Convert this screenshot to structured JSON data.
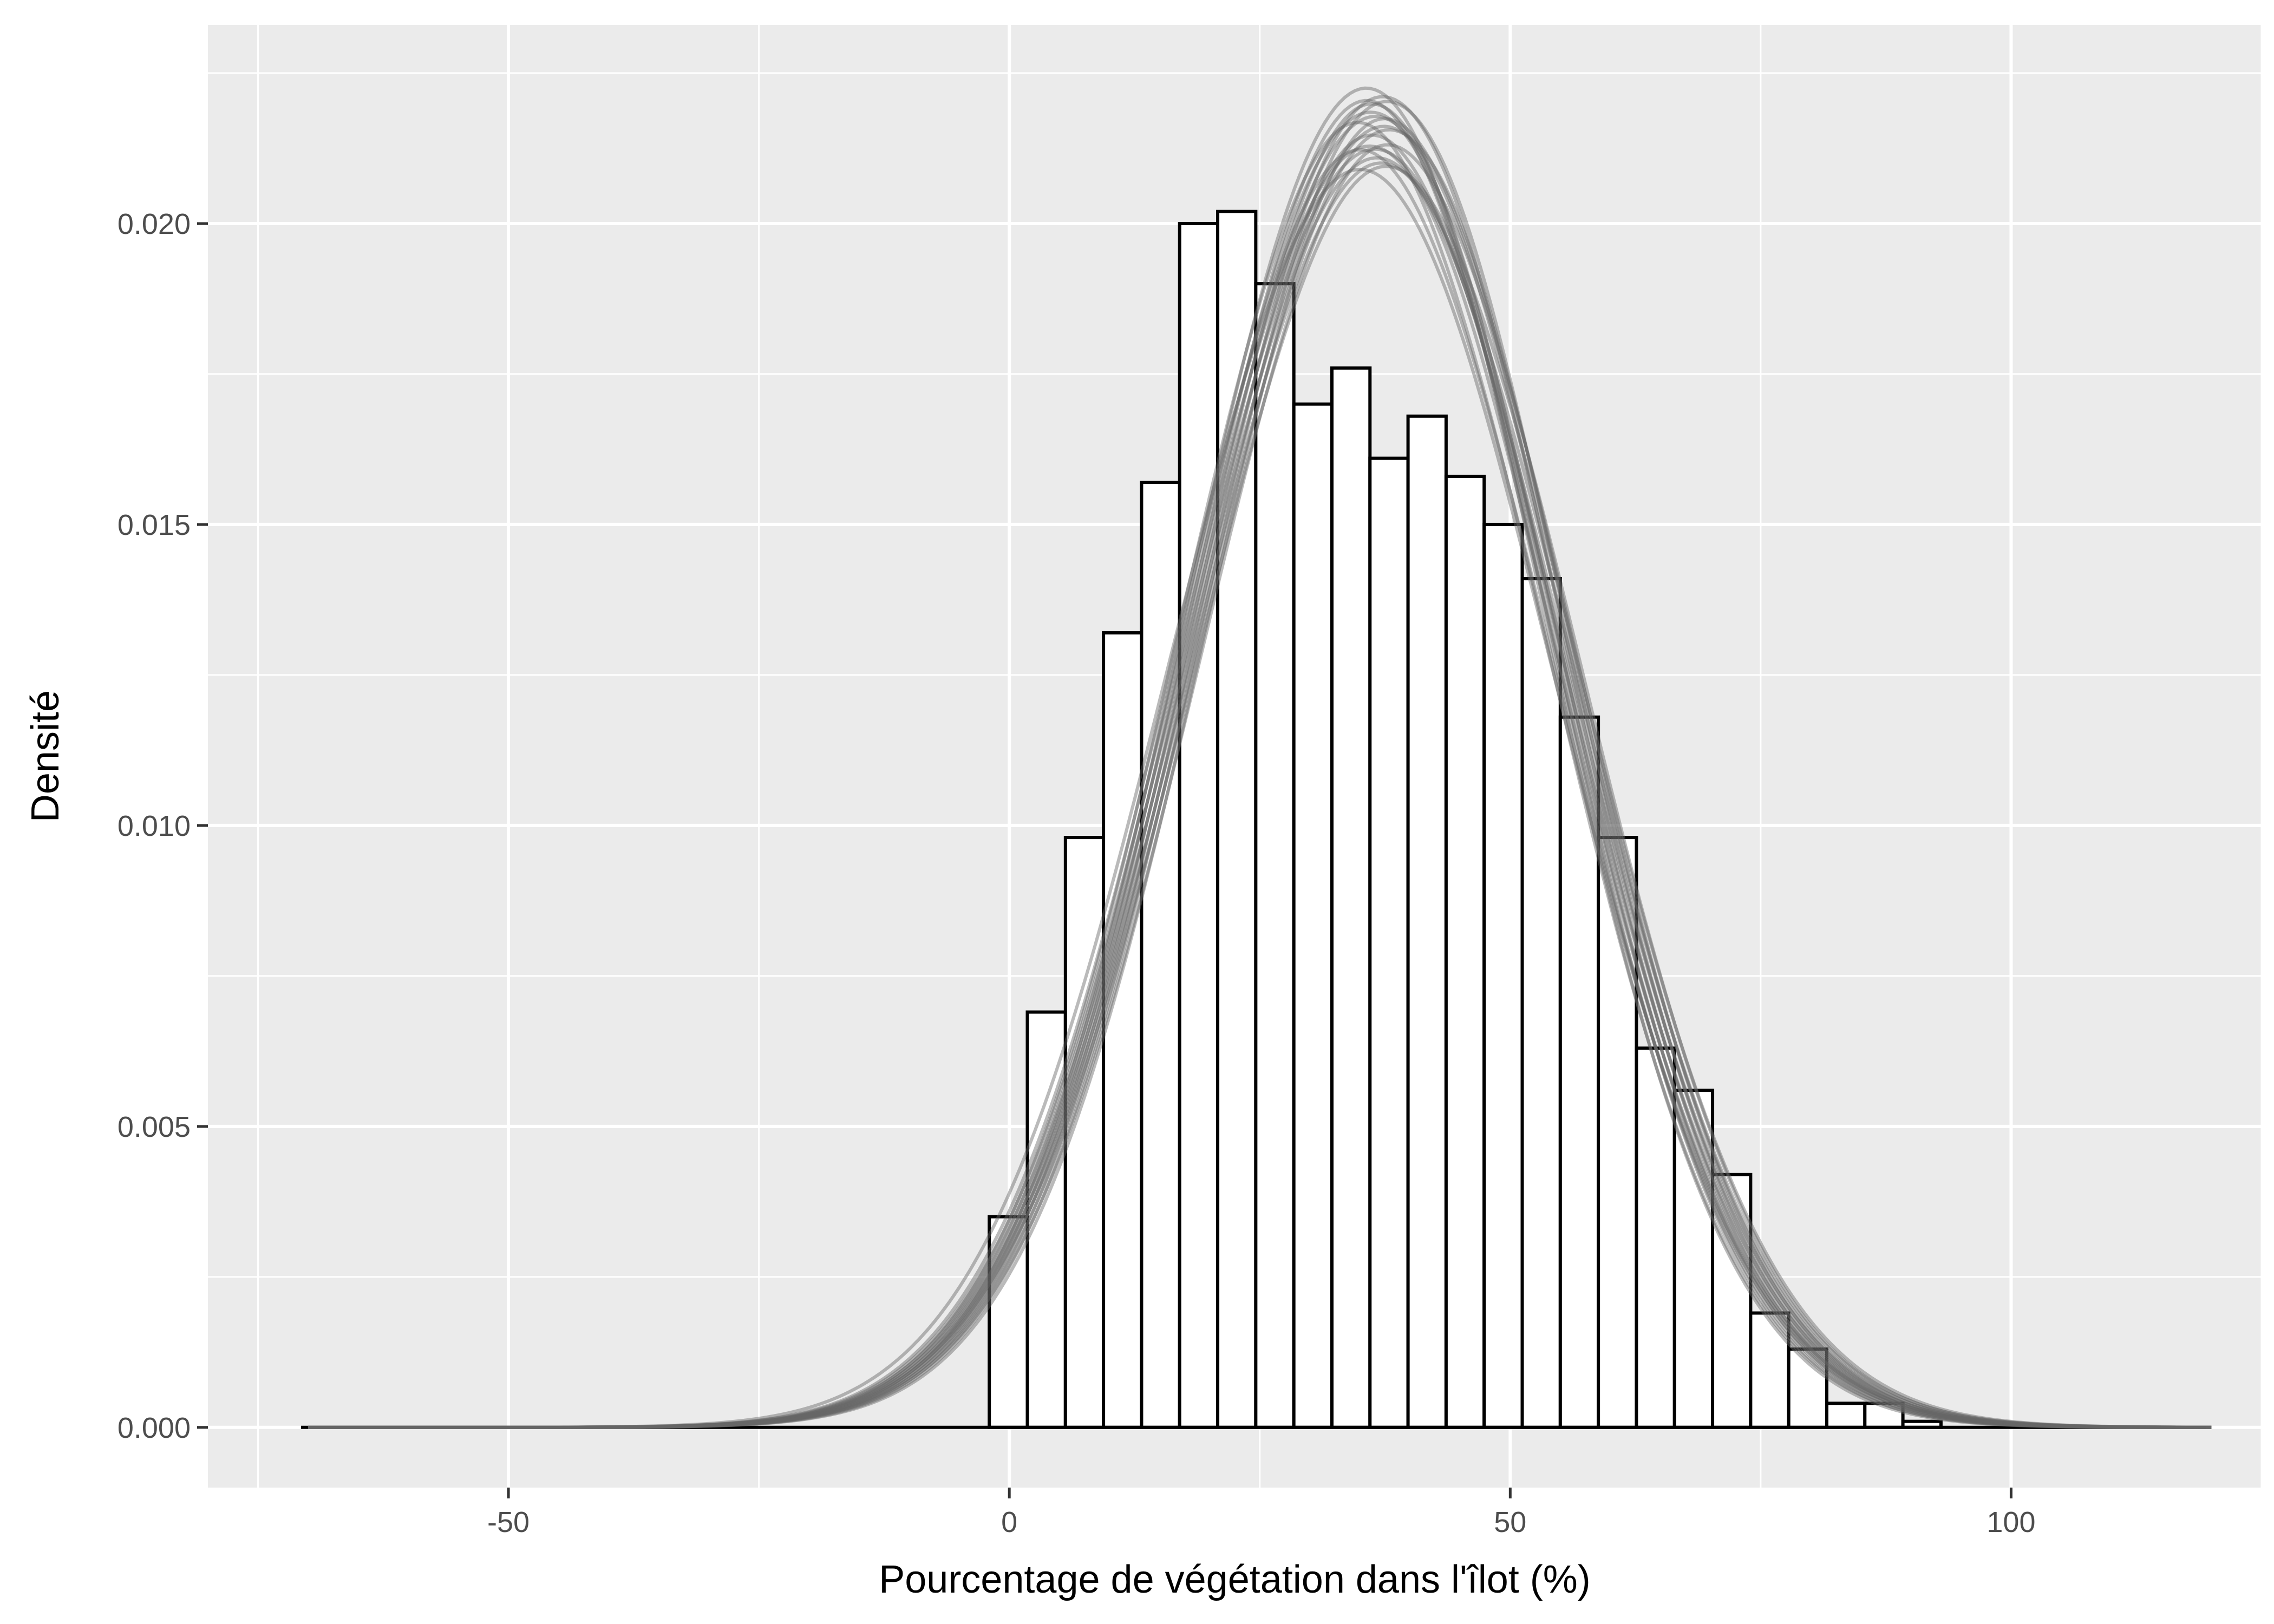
{
  "chart_data": {
    "type": "bar",
    "subtype": "histogram with overlaid density curves",
    "xlabel": "Pourcentage de végétation dans l'îlot (%)",
    "ylabel": "Densité",
    "xlim": [
      -80,
      125
    ],
    "ylim": [
      -0.001,
      0.0233
    ],
    "x_ticks": [
      -50,
      0,
      50,
      100
    ],
    "x_tick_labels": [
      "-50",
      "0",
      "50",
      "100"
    ],
    "y_ticks": [
      0.0,
      0.005,
      0.01,
      0.015,
      0.02
    ],
    "y_tick_labels": [
      "0.000",
      "0.005",
      "0.010",
      "0.015",
      "0.020"
    ],
    "grid": true,
    "bin_width": 3.8,
    "baseline_range": [
      -70.7,
      119.5
    ],
    "bins": [
      {
        "x0": -2.0,
        "x1": 1.8,
        "value": 0.0035
      },
      {
        "x0": 1.8,
        "x1": 5.6,
        "value": 0.0069
      },
      {
        "x0": 5.6,
        "x1": 9.4,
        "value": 0.0098
      },
      {
        "x0": 9.4,
        "x1": 13.2,
        "value": 0.0132
      },
      {
        "x0": 13.2,
        "x1": 17.0,
        "value": 0.0157
      },
      {
        "x0": 17.0,
        "x1": 20.8,
        "value": 0.02
      },
      {
        "x0": 20.8,
        "x1": 24.6,
        "value": 0.0202
      },
      {
        "x0": 24.6,
        "x1": 28.4,
        "value": 0.019
      },
      {
        "x0": 28.4,
        "x1": 32.2,
        "value": 0.017
      },
      {
        "x0": 32.2,
        "x1": 36.0,
        "value": 0.0176
      },
      {
        "x0": 36.0,
        "x1": 39.8,
        "value": 0.0161
      },
      {
        "x0": 39.8,
        "x1": 43.6,
        "value": 0.0168
      },
      {
        "x0": 43.6,
        "x1": 47.4,
        "value": 0.0158
      },
      {
        "x0": 47.4,
        "x1": 51.2,
        "value": 0.015
      },
      {
        "x0": 51.2,
        "x1": 55.0,
        "value": 0.0141
      },
      {
        "x0": 55.0,
        "x1": 58.8,
        "value": 0.0118
      },
      {
        "x0": 58.8,
        "x1": 62.6,
        "value": 0.0098
      },
      {
        "x0": 62.6,
        "x1": 66.4,
        "value": 0.0063
      },
      {
        "x0": 66.4,
        "x1": 70.2,
        "value": 0.0056
      },
      {
        "x0": 70.2,
        "x1": 74.0,
        "value": 0.0042
      },
      {
        "x0": 74.0,
        "x1": 77.8,
        "value": 0.0019
      },
      {
        "x0": 77.8,
        "x1": 81.6,
        "value": 0.0013
      },
      {
        "x0": 81.6,
        "x1": 85.4,
        "value": 0.0004
      },
      {
        "x0": 85.4,
        "x1": 89.2,
        "value": 0.0004
      },
      {
        "x0": 89.2,
        "x1": 93.0,
        "value": 0.0001
      }
    ],
    "density_curves": {
      "count": 20,
      "color": "#666666",
      "opacity": 0.45,
      "shape": "approximately normal",
      "peak_x_range": [
        35,
        38
      ],
      "peak_y_range": [
        0.0209,
        0.0222
      ],
      "x_range": [
        -70,
        120
      ],
      "approx_mean": 36.5,
      "approx_sd": 18.5
    },
    "colors": {
      "panel_background": "#ebebeb",
      "grid": "#ffffff",
      "bar_fill": "#ffffff",
      "bar_stroke": "#000000",
      "curve": "#666666",
      "tick_text": "#4d4d4d",
      "tick_mark": "#333333",
      "title_text": "#000000"
    }
  }
}
